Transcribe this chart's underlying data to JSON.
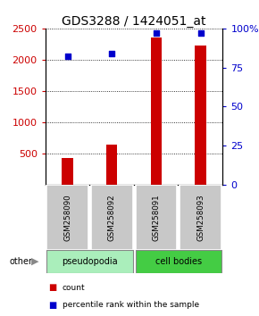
{
  "title": "GDS3288 / 1424051_at",
  "samples": [
    "GSM258090",
    "GSM258092",
    "GSM258091",
    "GSM258093"
  ],
  "counts": [
    430,
    640,
    2350,
    2220
  ],
  "percentile_ranks": [
    82,
    84,
    97,
    97
  ],
  "ylim_left": [
    0,
    2500
  ],
  "ylim_right": [
    0,
    100
  ],
  "yticks_left": [
    500,
    1000,
    1500,
    2000,
    2500
  ],
  "yticks_right": [
    0,
    25,
    50,
    75,
    100
  ],
  "bar_color": "#cc0000",
  "dot_color": "#0000cc",
  "grey_box_color": "#c8c8c8",
  "groups": [
    {
      "label": "pseudopodia",
      "color": "#aaeebb",
      "start": 0,
      "end": 1
    },
    {
      "label": "cell bodies",
      "color": "#44cc44",
      "start": 2,
      "end": 3
    }
  ],
  "other_label": "other",
  "legend_count_label": "count",
  "legend_percentile_label": "percentile rank within the sample",
  "title_fontsize": 10,
  "tick_fontsize": 8,
  "bar_width": 0.25,
  "background_color": "#ffffff"
}
